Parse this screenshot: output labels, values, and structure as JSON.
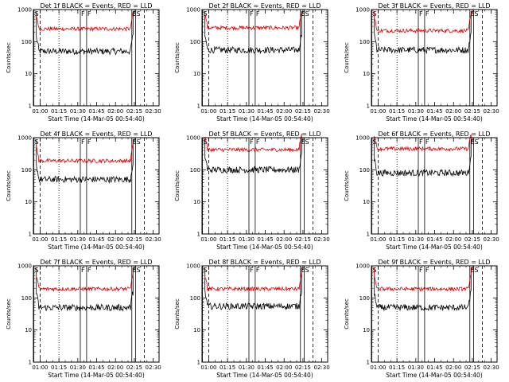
{
  "figure": {
    "x_label": "Start Time (14-Mar-05 00:54:40)",
    "y_label": "Counts/sec",
    "x_ticks": [
      "01:00",
      "01:15",
      "01:30",
      "01:45",
      "02:00",
      "02:15",
      "02:30"
    ],
    "y_ticks": [
      "1",
      "10",
      "100",
      "1000"
    ],
    "colors": {
      "events": "#000000",
      "lld": "#e00000",
      "axes": "#000000"
    }
  },
  "chart_data": [
    {
      "type": "line",
      "title": "Det 1f BLACK = Events, RED = LLD",
      "xlim": [
        "00:54:40",
        "02:34:40"
      ],
      "ylim": [
        1,
        1000
      ],
      "yscale": "log",
      "markers": [
        {
          "label": "S",
          "time": "00:55"
        },
        {
          "label": "F",
          "time": "01:32"
        },
        {
          "label": "F",
          "time": "01:37"
        },
        {
          "label": "E",
          "time": "02:13"
        },
        {
          "label": "S",
          "time": "02:16"
        }
      ],
      "series": [
        {
          "name": "Events",
          "level": 50,
          "edge": "00:57",
          "end": "02:14"
        },
        {
          "name": "LLD",
          "level": 250,
          "edge": "00:57",
          "end": "02:14"
        }
      ]
    },
    {
      "type": "line",
      "title": "Det 2f BLACK = Events, RED = LLD",
      "xlim": [
        "00:54:40",
        "02:34:40"
      ],
      "ylim": [
        1,
        1000
      ],
      "yscale": "log",
      "markers": [
        {
          "label": "S",
          "time": "00:55"
        },
        {
          "label": "F",
          "time": "01:32"
        },
        {
          "label": "F",
          "time": "01:37"
        },
        {
          "label": "E",
          "time": "02:13"
        },
        {
          "label": "S",
          "time": "02:16"
        }
      ],
      "series": [
        {
          "name": "Events",
          "level": 55,
          "edge": "00:57",
          "end": "02:14"
        },
        {
          "name": "LLD",
          "level": 270,
          "edge": "00:57",
          "end": "02:14"
        }
      ]
    },
    {
      "type": "line",
      "title": "Det 3f BLACK = Events, RED = LLD",
      "xlim": [
        "00:54:40",
        "02:34:40"
      ],
      "ylim": [
        1,
        1000
      ],
      "yscale": "log",
      "markers": [
        {
          "label": "S",
          "time": "00:55"
        },
        {
          "label": "F",
          "time": "01:32"
        },
        {
          "label": "F",
          "time": "01:37"
        },
        {
          "label": "E",
          "time": "02:13"
        },
        {
          "label": "S",
          "time": "02:16"
        }
      ],
      "series": [
        {
          "name": "Events",
          "level": 55,
          "edge": "00:57",
          "end": "02:14"
        },
        {
          "name": "LLD",
          "level": 220,
          "edge": "00:57",
          "end": "02:14"
        }
      ]
    },
    {
      "type": "line",
      "title": "Det 4f BLACK = Events, RED = LLD",
      "xlim": [
        "00:54:40",
        "02:34:40"
      ],
      "ylim": [
        1,
        1000
      ],
      "yscale": "log",
      "markers": [
        {
          "label": "S",
          "time": "00:55"
        },
        {
          "label": "F",
          "time": "01:32"
        },
        {
          "label": "F",
          "time": "01:37"
        },
        {
          "label": "E",
          "time": "02:13"
        },
        {
          "label": "S",
          "time": "02:16"
        }
      ],
      "series": [
        {
          "name": "Events",
          "level": 50,
          "edge": "00:57",
          "end": "02:14"
        },
        {
          "name": "LLD",
          "level": 190,
          "edge": "00:57",
          "end": "02:14"
        }
      ]
    },
    {
      "type": "line",
      "title": "Det 5f BLACK = Events, RED = LLD",
      "xlim": [
        "00:54:40",
        "02:34:40"
      ],
      "ylim": [
        1,
        1000
      ],
      "yscale": "log",
      "markers": [
        {
          "label": "S",
          "time": "00:55"
        },
        {
          "label": "F",
          "time": "01:32"
        },
        {
          "label": "F",
          "time": "01:37"
        },
        {
          "label": "E",
          "time": "02:13"
        },
        {
          "label": "S",
          "time": "02:16"
        }
      ],
      "series": [
        {
          "name": "Events",
          "level": 100,
          "edge": "00:57",
          "end": "02:14"
        },
        {
          "name": "LLD",
          "level": 420,
          "edge": "00:57",
          "end": "02:14"
        }
      ]
    },
    {
      "type": "line",
      "title": "Det 6f BLACK = Events, RED = LLD",
      "xlim": [
        "00:54:40",
        "02:34:40"
      ],
      "ylim": [
        1,
        1000
      ],
      "yscale": "log",
      "markers": [
        {
          "label": "S",
          "time": "00:55"
        },
        {
          "label": "F",
          "time": "01:32"
        },
        {
          "label": "F",
          "time": "01:37"
        },
        {
          "label": "E",
          "time": "02:13"
        },
        {
          "label": "S",
          "time": "02:16"
        }
      ],
      "series": [
        {
          "name": "Events",
          "level": 80,
          "edge": "00:57",
          "end": "02:14"
        },
        {
          "name": "LLD",
          "level": 450,
          "edge": "00:57",
          "end": "02:14"
        }
      ]
    },
    {
      "type": "line",
      "title": "Det 7f BLACK = Events, RED = LLD",
      "xlim": [
        "00:54:40",
        "02:34:40"
      ],
      "ylim": [
        1,
        1000
      ],
      "yscale": "log",
      "markers": [
        {
          "label": "S",
          "time": "00:55"
        },
        {
          "label": "F",
          "time": "01:32"
        },
        {
          "label": "F",
          "time": "01:37"
        },
        {
          "label": "E",
          "time": "02:13"
        },
        {
          "label": "S",
          "time": "02:16"
        }
      ],
      "series": [
        {
          "name": "Events",
          "level": 50,
          "edge": "00:57",
          "end": "02:14"
        },
        {
          "name": "LLD",
          "level": 190,
          "edge": "00:57",
          "end": "02:14"
        }
      ]
    },
    {
      "type": "line",
      "title": "Det 8f BLACK = Events, RED = LLD",
      "xlim": [
        "00:54:40",
        "02:34:40"
      ],
      "ylim": [
        1,
        1000
      ],
      "yscale": "log",
      "markers": [
        {
          "label": "S",
          "time": "00:55"
        },
        {
          "label": "F",
          "time": "01:32"
        },
        {
          "label": "F",
          "time": "01:37"
        },
        {
          "label": "E",
          "time": "02:13"
        },
        {
          "label": "S",
          "time": "02:16"
        }
      ],
      "series": [
        {
          "name": "Events",
          "level": 55,
          "edge": "00:57",
          "end": "02:14"
        },
        {
          "name": "LLD",
          "level": 190,
          "edge": "00:57",
          "end": "02:14"
        }
      ]
    },
    {
      "type": "line",
      "title": "Det 9f BLACK = Events, RED = LLD",
      "xlim": [
        "00:54:40",
        "02:34:40"
      ],
      "ylim": [
        1,
        1000
      ],
      "yscale": "log",
      "markers": [
        {
          "label": "S",
          "time": "00:55"
        },
        {
          "label": "F",
          "time": "01:32"
        },
        {
          "label": "F",
          "time": "01:37"
        },
        {
          "label": "E",
          "time": "02:13"
        },
        {
          "label": "S",
          "time": "02:16"
        }
      ],
      "series": [
        {
          "name": "Events",
          "level": 50,
          "edge": "00:57",
          "end": "02:14"
        },
        {
          "name": "LLD",
          "level": 190,
          "edge": "00:57",
          "end": "02:14"
        }
      ]
    }
  ]
}
